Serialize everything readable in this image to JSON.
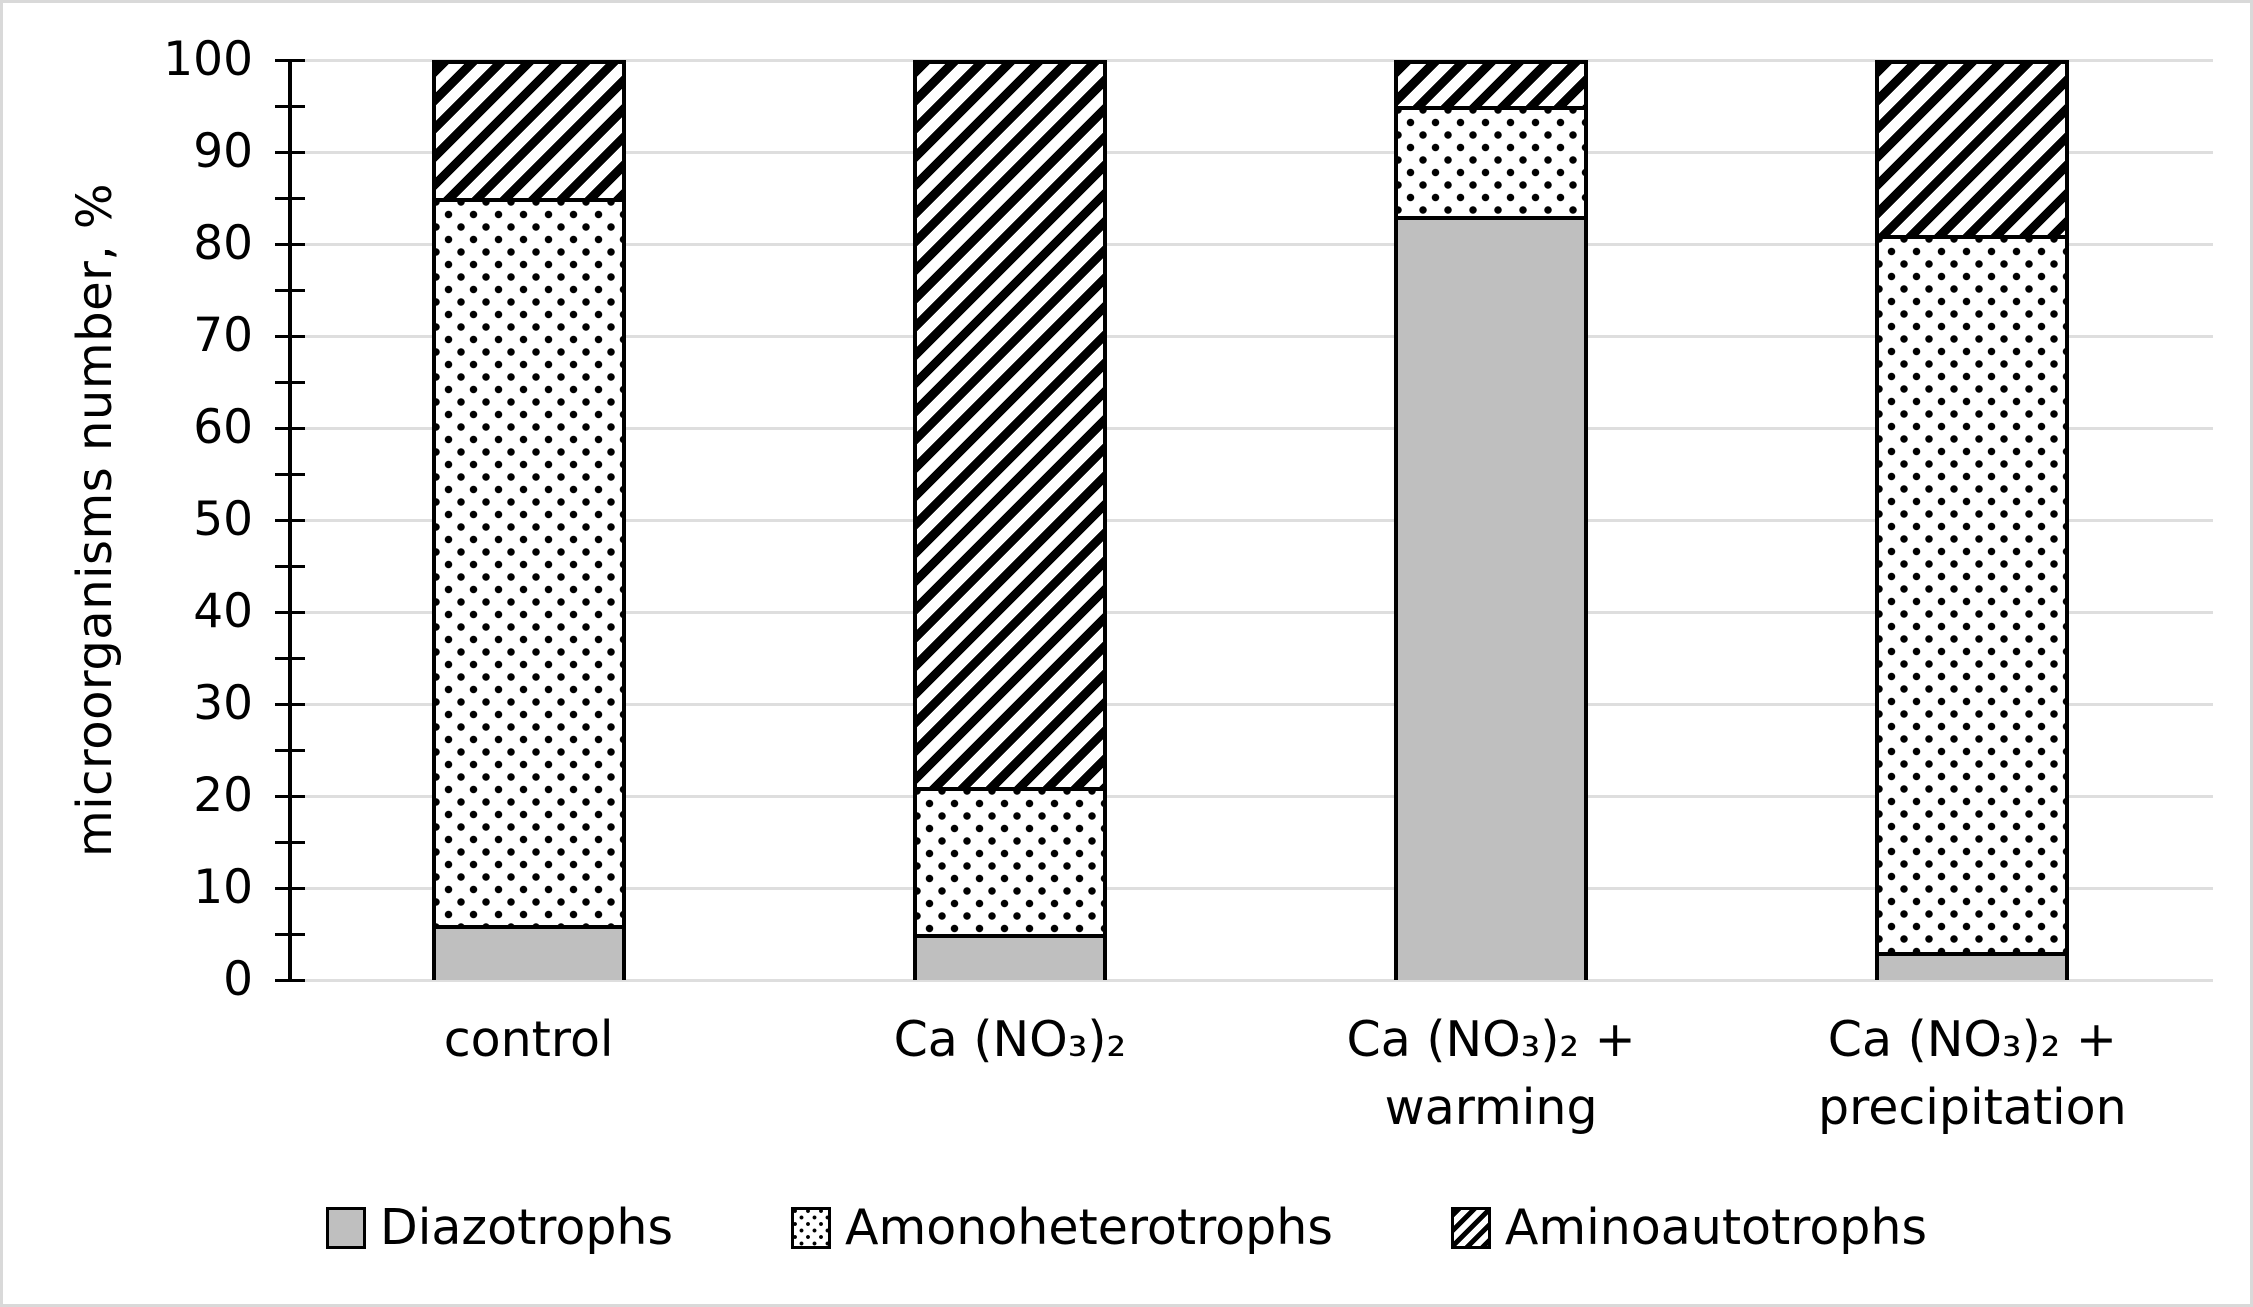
{
  "figure": {
    "background": "#ffffff",
    "frame_border_color": "#d9d9d9",
    "gridline_color": "#dedede",
    "axis_color": "#000000",
    "bar_outline_color": "#000000",
    "gray_fill_color": "#bfbfbf"
  },
  "chart_data": {
    "type": "bar",
    "stacked": true,
    "percent_stacked": true,
    "title": "",
    "xlabel": "",
    "ylabel": "microorganisms number, %",
    "ylim": [
      0,
      100
    ],
    "yticks": [
      0,
      10,
      20,
      30,
      40,
      50,
      60,
      70,
      80,
      90,
      100
    ],
    "minor_tick_step": 5,
    "grid": "horizontal",
    "legend_position": "bottom",
    "categories": [
      "control",
      "Ca (NO₃)₂",
      "Ca (NO₃)₂ +\nwarming",
      "Ca (NO₃)₂ +\nprecipitation"
    ],
    "series": [
      {
        "name": "Diazotrophs",
        "pattern": "solid-gray",
        "fill": "#bfbfbf",
        "values": [
          6,
          5,
          83,
          3
        ]
      },
      {
        "name": "Amonoheterotrophs",
        "pattern": "dotted",
        "fill": "#ffffff",
        "values": [
          79,
          16,
          12,
          78
        ]
      },
      {
        "name": "Aminoautotrophs",
        "pattern": "diagonal-stripes",
        "fill": "#ffffff",
        "values": [
          15,
          79,
          5,
          19
        ]
      }
    ]
  }
}
